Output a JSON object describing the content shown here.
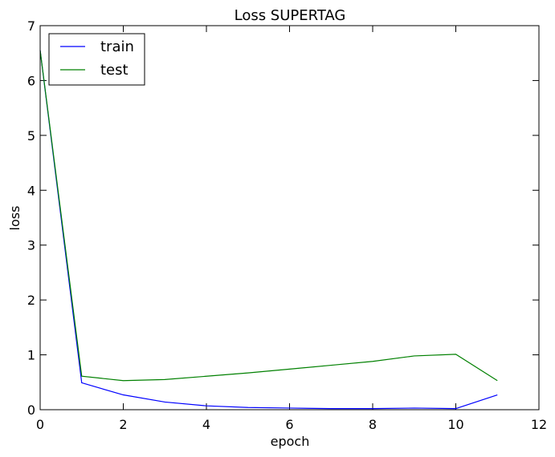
{
  "chart_data": {
    "type": "line",
    "title": "Loss SUPERTAG",
    "xlabel": "epoch",
    "ylabel": "loss",
    "xlim": [
      0,
      12
    ],
    "ylim": [
      0,
      7
    ],
    "xticks": [
      0,
      2,
      4,
      6,
      8,
      10,
      12
    ],
    "yticks": [
      0,
      1,
      2,
      3,
      4,
      5,
      6,
      7
    ],
    "grid": false,
    "legend_position": "top-left",
    "x": [
      0,
      1,
      2,
      3,
      4,
      5,
      6,
      7,
      8,
      9,
      10,
      11
    ],
    "series": [
      {
        "name": "train",
        "color": "#0000ff",
        "values": [
          6.55,
          0.49,
          0.27,
          0.14,
          0.07,
          0.04,
          0.03,
          0.02,
          0.02,
          0.03,
          0.02,
          0.27
        ]
      },
      {
        "name": "test",
        "color": "#008000",
        "values": [
          6.55,
          0.61,
          0.53,
          0.55,
          0.61,
          0.67,
          0.74,
          0.81,
          0.88,
          0.98,
          1.01,
          0.53
        ]
      }
    ]
  }
}
